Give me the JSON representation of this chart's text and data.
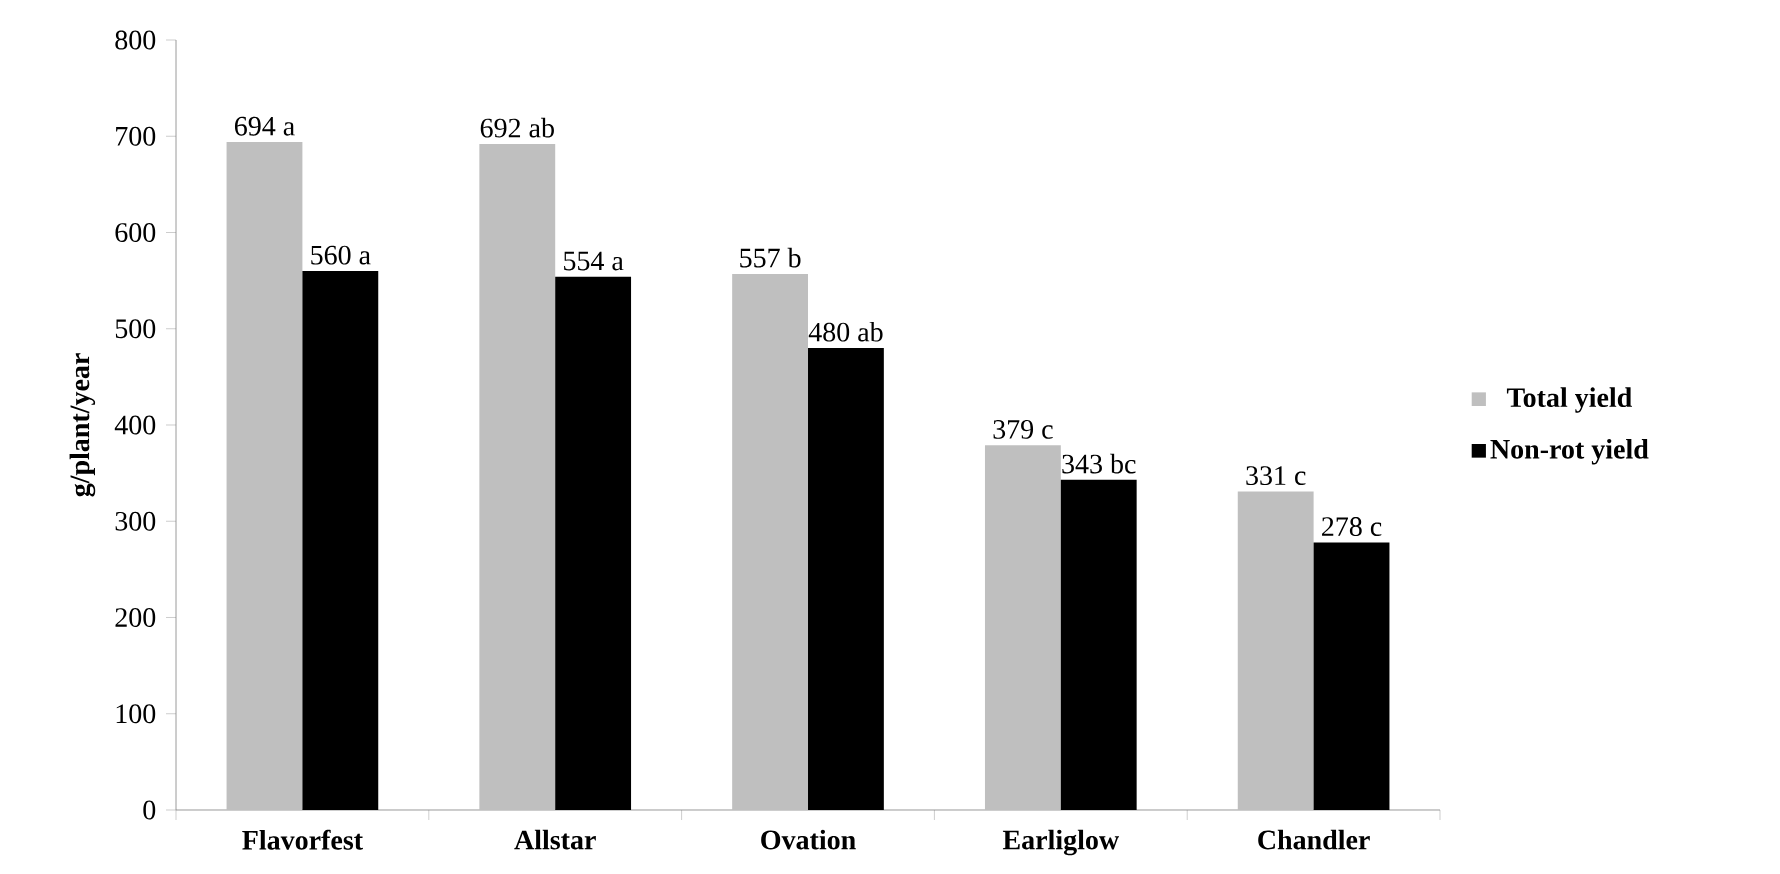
{
  "chart_data": {
    "type": "bar",
    "ylabel": "g/plant/year",
    "categories": [
      "Flavorfest",
      "Allstar",
      "Ovation",
      "Earliglow",
      "Chandler"
    ],
    "series": [
      {
        "name": "Total yield",
        "color": "#bfbfbf",
        "values": [
          694,
          692,
          557,
          379,
          331
        ],
        "value_labels": [
          "694 a",
          "692 ab",
          "557 b",
          "379 c",
          "331 c"
        ]
      },
      {
        "name": "Non-rot yield",
        "color": "#000000",
        "values": [
          560,
          554,
          480,
          343,
          278
        ],
        "value_labels": [
          "560 a",
          "554 a",
          "480 ab",
          "343 bc",
          "278 c"
        ]
      }
    ],
    "ylim": [
      0,
      800
    ],
    "yticks": [
      0,
      100,
      200,
      300,
      400,
      500,
      600,
      700,
      800
    ],
    "legend": "right",
    "grid": false
  }
}
